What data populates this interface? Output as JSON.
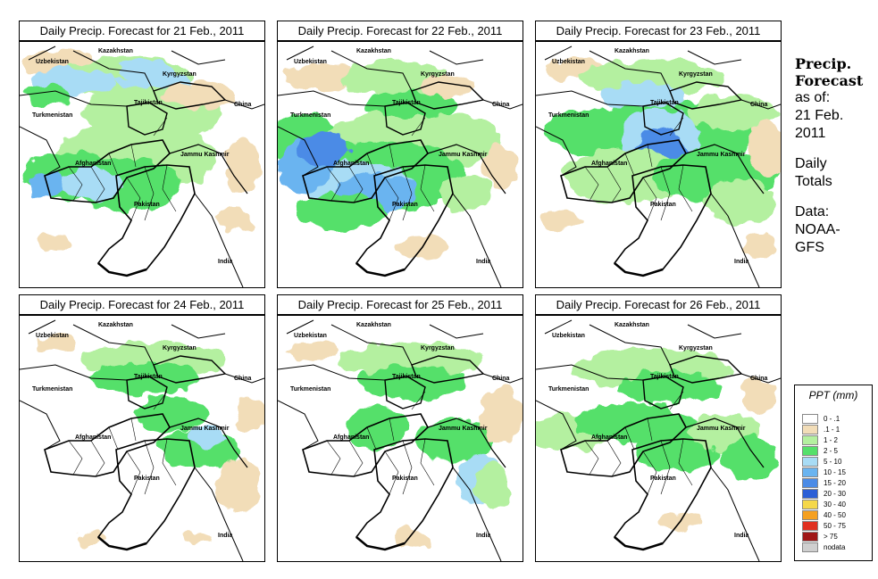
{
  "panels": [
    {
      "title": "Daily Precip. Forecast for  21 Feb., 2011"
    },
    {
      "title": "Daily Precip. Forecast for  22 Feb., 2011"
    },
    {
      "title": "Daily Precip. Forecast for  23 Feb., 2011"
    },
    {
      "title": "Daily Precip. Forecast for  24 Feb., 2011"
    },
    {
      "title": "Daily Precip. Forecast for  25 Feb., 2011"
    },
    {
      "title": "Daily Precip. Forecast for  26 Feb., 2011"
    }
  ],
  "map_labels": {
    "kazakhstan": "Kazakhstan",
    "uzbekistan": "Uzbekistan",
    "kyrgyzstan": "Kyrgyzstan",
    "tajikistan": "Tajikistan",
    "china": "China",
    "turkmenistan": "Turkmenistan",
    "afghanistan": "Afghanistan",
    "jammu_kashmir": "Jammu Kashmir",
    "pakistan": "Pakistan",
    "india": "India"
  },
  "side_info": {
    "heading_1": "Precip.",
    "heading_2": "Forecast",
    "line_1": "as of:",
    "line_2": "21 Feb.",
    "line_3": "2011",
    "line_4": "Daily",
    "line_5": "Totals",
    "line_6": "Data:",
    "line_7": "NOAA-",
    "line_8": "GFS"
  },
  "legend": {
    "title": "PPT (mm)",
    "items": [
      {
        "label": "0 - .1",
        "color": "#ffffff"
      },
      {
        "label": ".1 - 1",
        "color": "#f2ddb8"
      },
      {
        "label": "1 - 2",
        "color": "#b4f0a0"
      },
      {
        "label": "2 - 5",
        "color": "#55e06a"
      },
      {
        "label": "5 - 10",
        "color": "#a8dcf5"
      },
      {
        "label": "10 - 15",
        "color": "#6ab4f0"
      },
      {
        "label": "15 - 20",
        "color": "#4b8be6"
      },
      {
        "label": "20 - 30",
        "color": "#2c5fd6"
      },
      {
        "label": "30 - 40",
        "color": "#f5d84a"
      },
      {
        "label": "40 - 50",
        "color": "#f5a020"
      },
      {
        "label": "50 - 75",
        "color": "#e03020"
      },
      {
        "label": "> 75",
        "color": "#a01818"
      },
      {
        "label": "nodata",
        "color": "#cfcfcf"
      }
    ]
  }
}
